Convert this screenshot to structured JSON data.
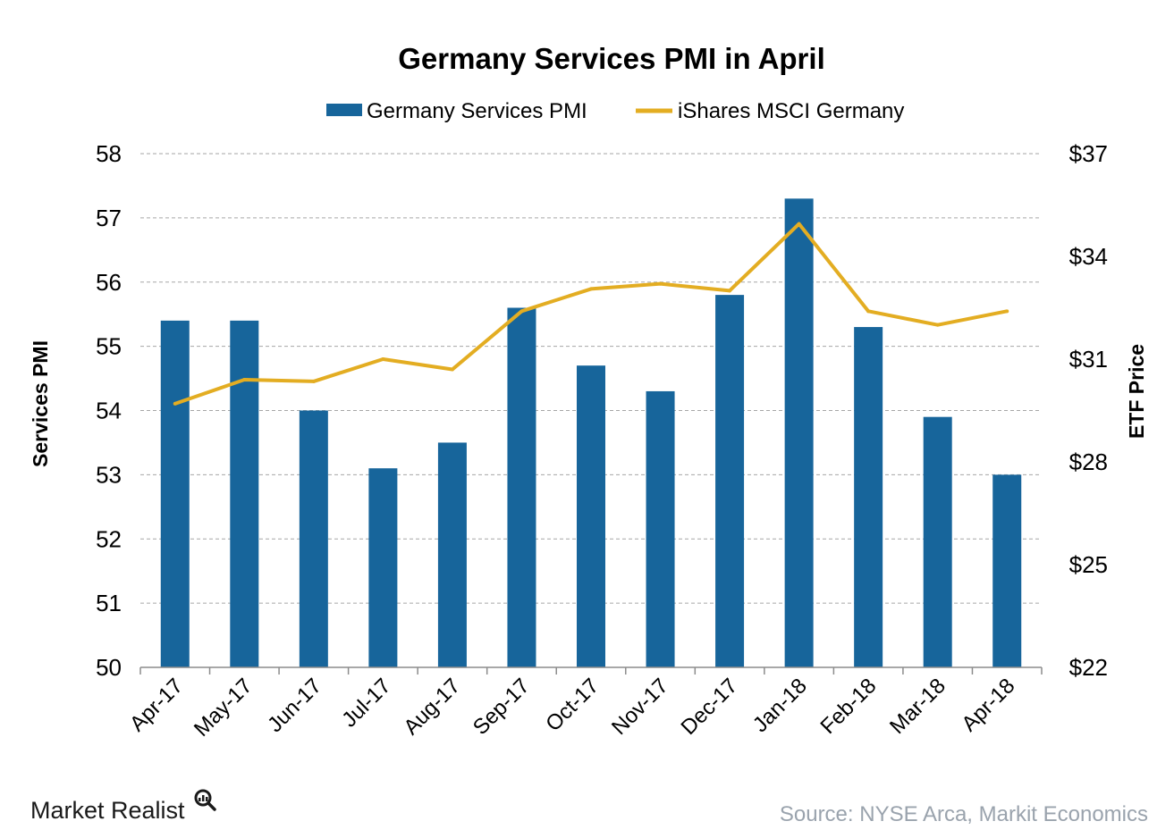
{
  "chart_data": {
    "type": "bar",
    "title": "Germany Services PMI in April",
    "categories": [
      "Apr-17",
      "May-17",
      "Jun-17",
      "Jul-17",
      "Aug-17",
      "Sep-17",
      "Oct-17",
      "Nov-17",
      "Dec-17",
      "Jan-18",
      "Feb-18",
      "Mar-18",
      "Apr-18"
    ],
    "series": [
      {
        "name": "Germany Services PMI",
        "type": "bar",
        "axis": "left",
        "color": "#17659b",
        "values": [
          55.4,
          55.4,
          54.0,
          53.1,
          53.5,
          55.6,
          54.7,
          54.3,
          55.8,
          57.3,
          55.3,
          53.9,
          53.0
        ]
      },
      {
        "name": "iShares MSCI Germany",
        "type": "line",
        "axis": "right",
        "color": "#e3ad22",
        "values": [
          29.7,
          30.4,
          30.35,
          31.0,
          30.7,
          32.4,
          33.05,
          33.2,
          33.0,
          34.95,
          32.4,
          32.0,
          32.4
        ]
      }
    ],
    "ylabel": "Services PMI",
    "y2label": "ETF Price",
    "ylim": [
      50,
      58
    ],
    "y2lim": [
      22,
      37
    ],
    "yticks": [
      "50",
      "51",
      "52",
      "53",
      "54",
      "55",
      "56",
      "57",
      "58"
    ],
    "y2ticks": [
      "$22",
      "$25",
      "$28",
      "$31",
      "$34",
      "$37"
    ],
    "y2tick_values": [
      22,
      25,
      28,
      31,
      34,
      37
    ],
    "grid": true,
    "legend_position": "top"
  },
  "source": "Source: NYSE Arca, Markit Economics",
  "brand": "Market Realist"
}
